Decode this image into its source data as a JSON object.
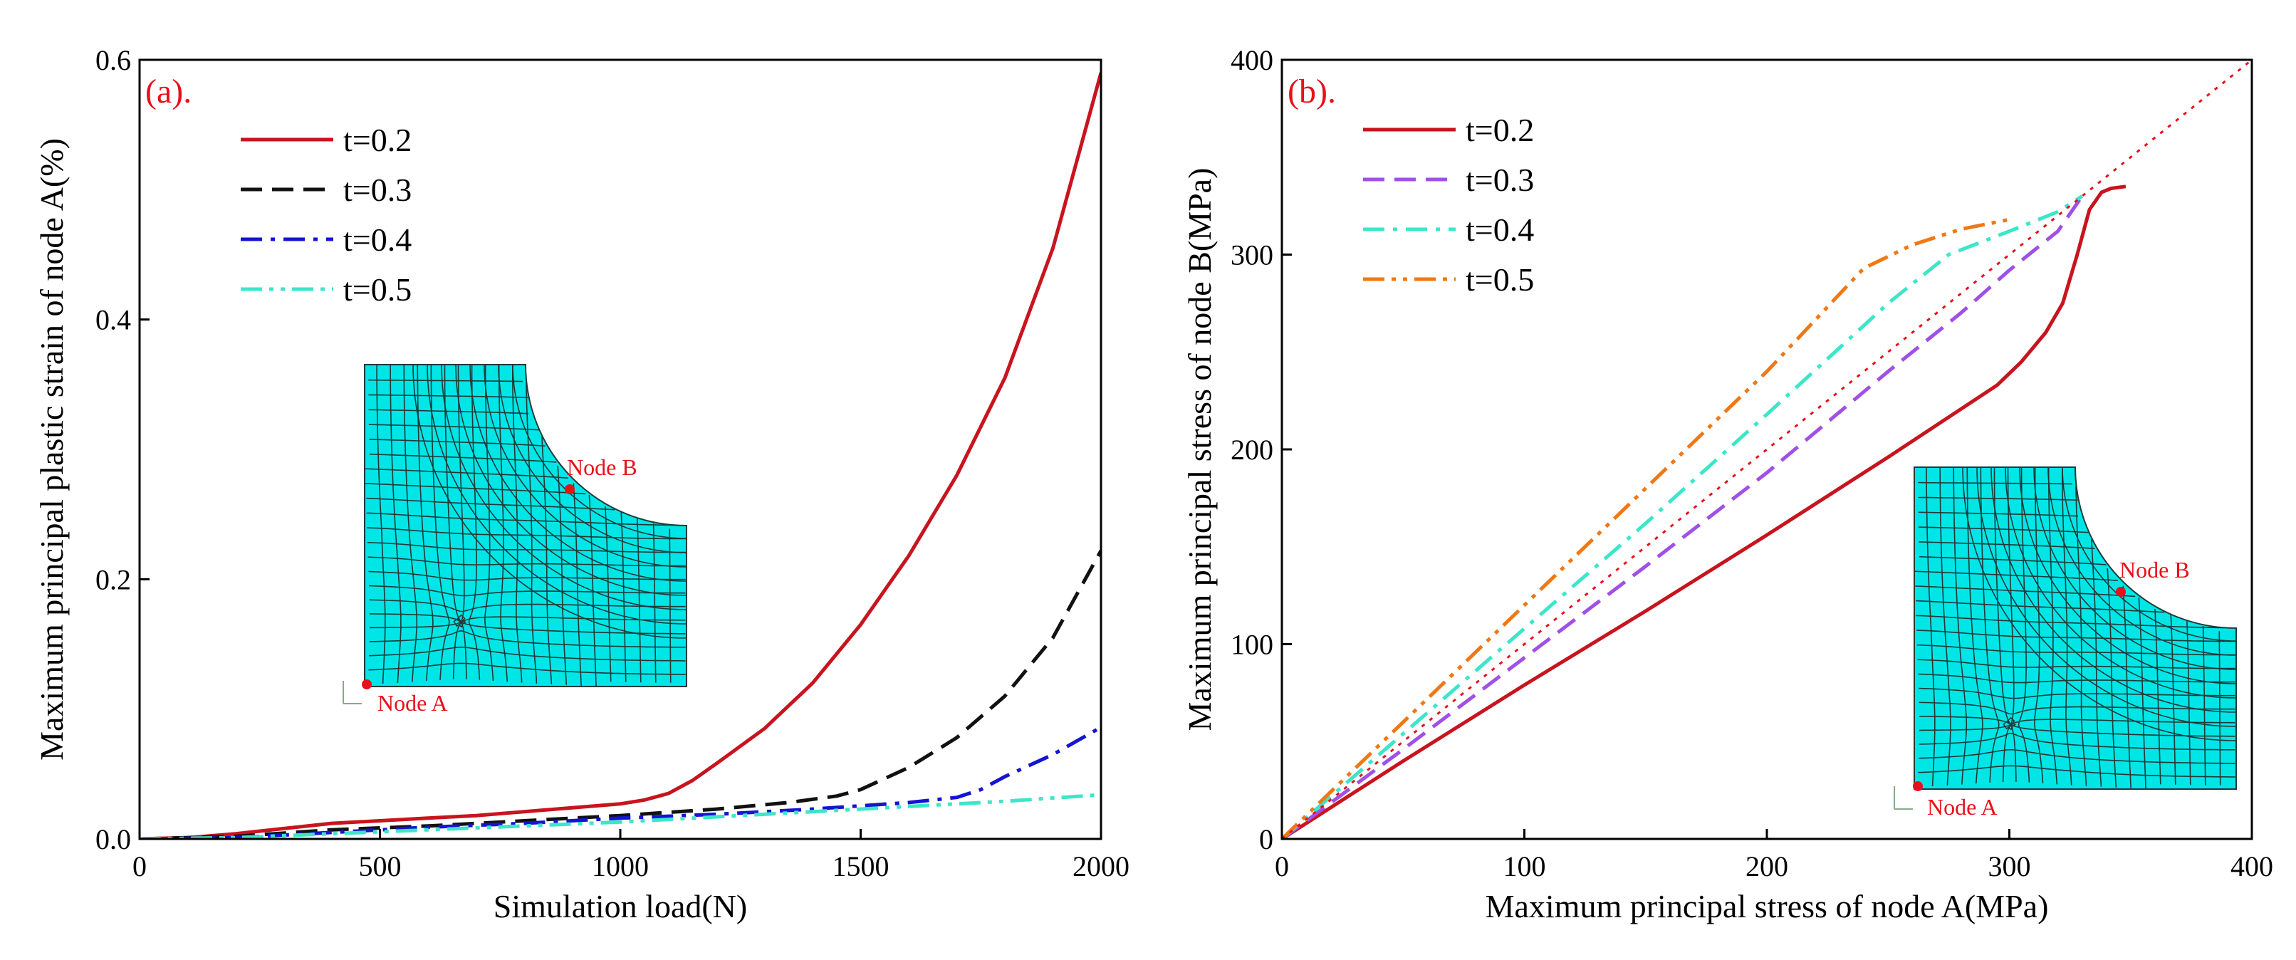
{
  "chart_data": [
    {
      "type": "line",
      "panel": "(a).",
      "xlabel": "Simulation load(N)",
      "ylabel": "Maximum principal plastic strain of node A(%)",
      "xlim": [
        0,
        2000
      ],
      "ylim": [
        0,
        0.6
      ],
      "xticks": [
        0,
        500,
        1000,
        1500,
        2000
      ],
      "yticks": [
        0.0,
        0.2,
        0.4,
        0.6
      ],
      "xtick_labels": [
        "0",
        "500",
        "1000",
        "1500",
        "2000"
      ],
      "ytick_labels": [
        "0.0",
        "0.2",
        "0.4",
        "0.6"
      ],
      "legend_position": "top-left",
      "series": [
        {
          "name": "t=0.2",
          "color": "#c8141e",
          "dash": "solid",
          "x": [
            0,
            100,
            200,
            300,
            400,
            500,
            600,
            700,
            800,
            900,
            1000,
            1050,
            1100,
            1150,
            1200,
            1300,
            1400,
            1500,
            1600,
            1700,
            1800,
            1900,
            2000
          ],
          "y": [
            0,
            0.001,
            0.004,
            0.008,
            0.012,
            0.014,
            0.016,
            0.018,
            0.021,
            0.024,
            0.027,
            0.03,
            0.035,
            0.045,
            0.058,
            0.085,
            0.12,
            0.165,
            0.218,
            0.28,
            0.355,
            0.455,
            0.59
          ]
        },
        {
          "name": "t=0.3",
          "color": "#111111",
          "dash": "dash",
          "x": [
            0,
            200,
            400,
            600,
            800,
            1000,
            1200,
            1350,
            1450,
            1500,
            1600,
            1700,
            1800,
            1900,
            2000
          ],
          "y": [
            0,
            0.002,
            0.007,
            0.01,
            0.014,
            0.018,
            0.023,
            0.028,
            0.033,
            0.038,
            0.055,
            0.078,
            0.11,
            0.155,
            0.222
          ]
        },
        {
          "name": "t=0.4",
          "color": "#1414d2",
          "dash": "dashdot",
          "x": [
            0,
            200,
            400,
            600,
            800,
            1000,
            1200,
            1400,
            1600,
            1700,
            1750,
            1800,
            1900,
            2000
          ],
          "y": [
            0,
            0.001,
            0.005,
            0.009,
            0.012,
            0.016,
            0.019,
            0.023,
            0.028,
            0.032,
            0.038,
            0.048,
            0.065,
            0.086
          ]
        },
        {
          "name": "t=0.5",
          "color": "#3ce6c8",
          "dash": "dashdotdot",
          "x": [
            0,
            200,
            400,
            600,
            800,
            1000,
            1200,
            1400,
            1600,
            1800,
            2000
          ],
          "y": [
            0,
            0.001,
            0.004,
            0.007,
            0.01,
            0.013,
            0.017,
            0.021,
            0.025,
            0.029,
            0.034
          ]
        }
      ],
      "annotations": [
        "Node A",
        "Node B"
      ]
    },
    {
      "type": "line",
      "panel": "(b).",
      "xlabel": "Maximum principal stress of node A(MPa)",
      "ylabel": "Maximum principal stress of node B(MPa)",
      "xlim": [
        0,
        400
      ],
      "ylim": [
        0,
        400
      ],
      "xticks": [
        0,
        100,
        200,
        300,
        400
      ],
      "yticks": [
        0,
        100,
        200,
        300,
        400
      ],
      "xtick_labels": [
        "0",
        "100",
        "200",
        "300",
        "400"
      ],
      "ytick_labels": [
        "0",
        "100",
        "200",
        "300",
        "400"
      ],
      "legend_position": "top-left",
      "series": [
        {
          "name": "t=0.2",
          "color": "#c8141e",
          "dash": "solid",
          "x": [
            0,
            50,
            100,
            150,
            200,
            250,
            295,
            305,
            315,
            322,
            328,
            333,
            338,
            342,
            348
          ],
          "y": [
            0,
            40,
            79,
            117,
            156,
            196,
            233,
            245,
            260,
            275,
            300,
            323,
            332,
            334,
            335
          ]
        },
        {
          "name": "t=0.3",
          "color": "#a050e6",
          "dash": "dash",
          "x": [
            0,
            50,
            100,
            150,
            200,
            250,
            280,
            300,
            320,
            330
          ],
          "y": [
            0,
            46,
            93,
            140,
            188,
            240,
            270,
            292,
            312,
            330
          ]
        },
        {
          "name": "t=0.4",
          "color": "#3ce6c8",
          "dash": "dashdot",
          "x": [
            0,
            50,
            100,
            150,
            200,
            250,
            275,
            300,
            320,
            330
          ],
          "y": [
            0,
            54,
            108,
            162,
            218,
            275,
            300,
            312,
            322,
            330
          ]
        },
        {
          "name": "t=0.5",
          "color": "#f07814",
          "dash": "dashdotdot",
          "x": [
            0,
            50,
            100,
            150,
            200,
            240,
            260,
            280,
            300
          ],
          "y": [
            0,
            60,
            120,
            180,
            240,
            293,
            305,
            313,
            318
          ]
        },
        {
          "name": "reference",
          "color": "#e8101a",
          "dash": "dot",
          "legend": false,
          "x": [
            0,
            400
          ],
          "y": [
            0,
            400
          ]
        }
      ],
      "annotations": [
        "Node A",
        "Node B"
      ]
    }
  ]
}
